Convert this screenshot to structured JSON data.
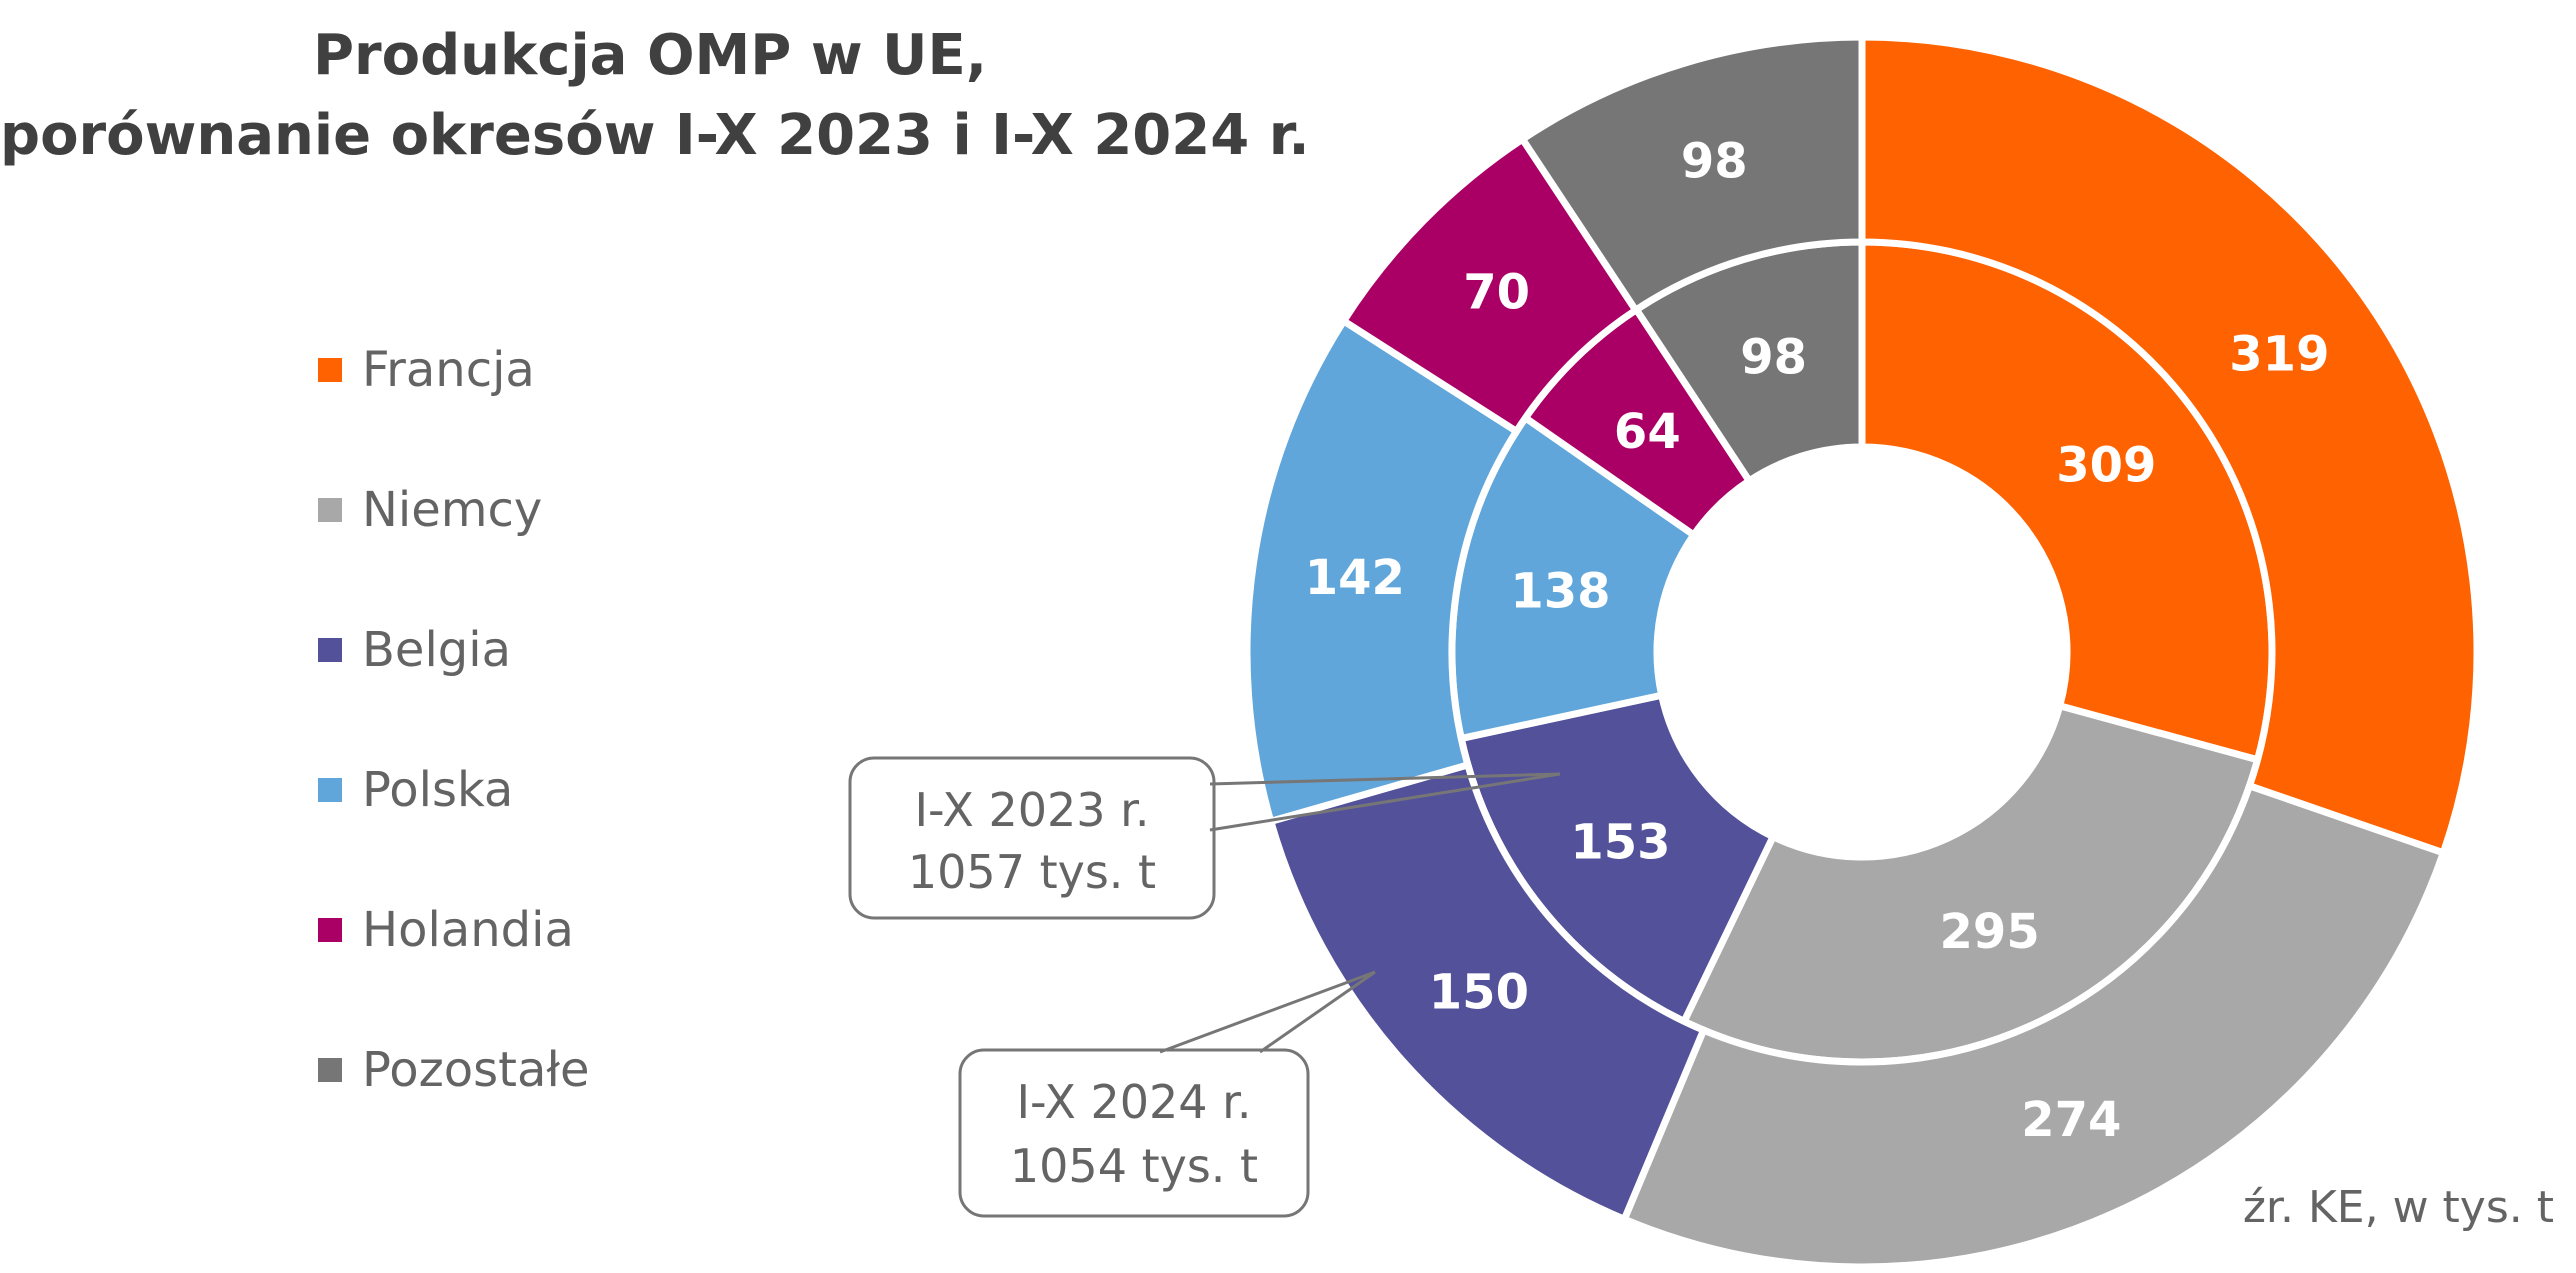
{
  "title": {
    "line1": "Produkcja OMP w UE,",
    "line2": "porównanie okresów I-X 2023 i I-X 2024 r."
  },
  "source": "źr. KE, w tys. t",
  "callouts": {
    "inner": {
      "line1": "I-X 2023 r.",
      "line2": "1057 tys. t"
    },
    "outer": {
      "line1": "I-X 2024 r.",
      "line2": "1054 tys. t"
    }
  },
  "chart_data": {
    "type": "donut",
    "categories": [
      "Francja",
      "Niemcy",
      "Belgia",
      "Polska",
      "Holandia",
      "Pozostałe"
    ],
    "colors": [
      "#ff6200",
      "#a8a8a8",
      "#525199",
      "#60a6da",
      "#aa0066",
      "#767676"
    ],
    "series": [
      {
        "name": "I-X 2023 r.",
        "ring": "inner",
        "values": [
          309,
          295,
          153,
          138,
          64,
          98
        ]
      },
      {
        "name": "I-X 2024 r.",
        "ring": "outer",
        "values": [
          319,
          274,
          150,
          142,
          70,
          98
        ]
      }
    ],
    "legend_position": "left"
  }
}
